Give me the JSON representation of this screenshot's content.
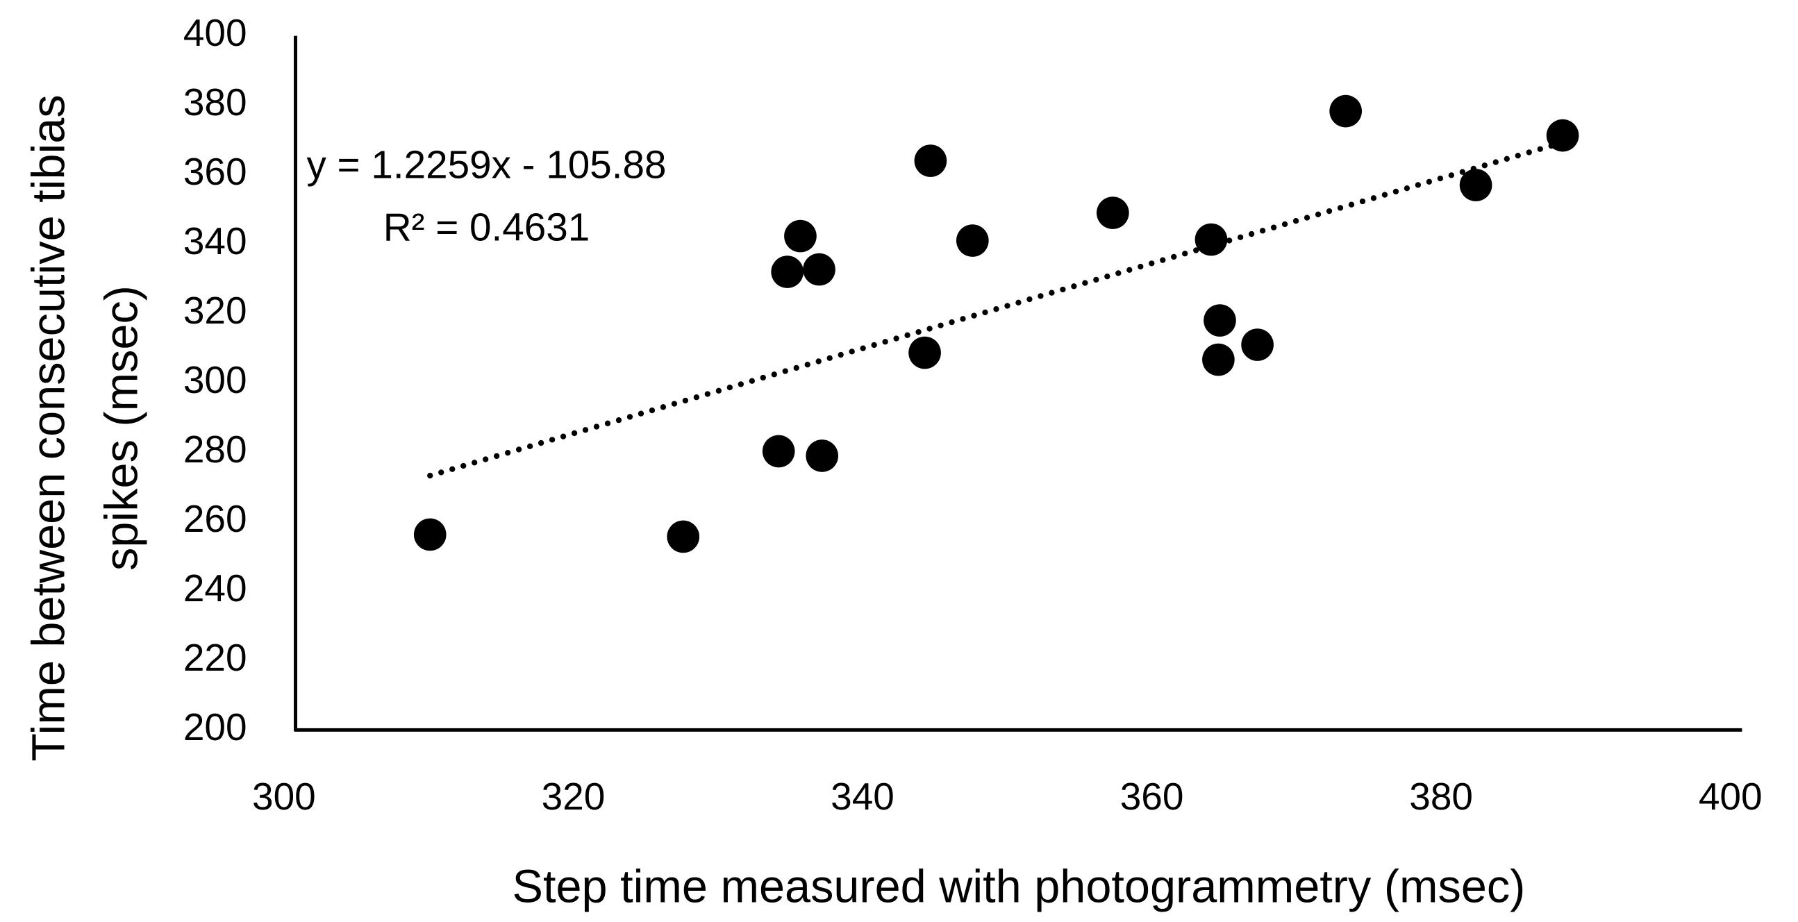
{
  "chart_data": {
    "type": "scatter",
    "x_label": "Step time measured with photogrammetry (msec)",
    "y_label": [
      "Time between consecutive tibias",
      "spikes (msec)"
    ],
    "x": [
      309.3,
      326.8,
      333.4,
      336.4,
      334.0,
      336.2,
      334.9,
      343.5,
      343.9,
      346.8,
      356.5,
      363.3,
      363.9,
      363.8,
      366.5,
      372.6,
      381.6,
      387.6
    ],
    "series": [
      {
        "color": "#000000",
        "values": [
          256.3,
          255.7,
          280.3,
          279.0,
          332.0,
          332.7,
          342.3,
          308.7,
          364.0,
          341.0,
          349.0,
          341.3,
          318.0,
          306.7,
          311.0,
          378.3,
          357.0,
          371.3
        ]
      }
    ],
    "trendline": {
      "x": [
        309.3,
        387.6
      ],
      "y": [
        273.28,
        369.28
      ],
      "color": "#000000",
      "style": "dotted",
      "equation": "y = 1.2259x - 105.88",
      "r_squared": "R² = 0.4631"
    },
    "xlim": [
      300,
      400
    ],
    "xticks": [
      300,
      320,
      340,
      360,
      380,
      400
    ],
    "ylim": [
      200,
      400
    ],
    "yticks": [
      200,
      220,
      240,
      260,
      280,
      300,
      320,
      340,
      360,
      380,
      400
    ],
    "grid": false
  }
}
